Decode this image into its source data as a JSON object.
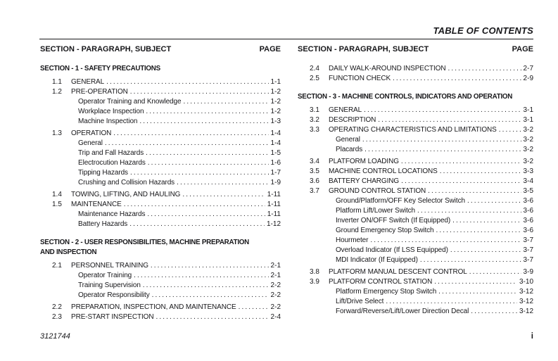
{
  "header": {
    "title": "TABLE OF CONTENTS"
  },
  "column_header": {
    "subject_label": "SECTION - PARAGRAPH, SUBJECT",
    "page_label": "PAGE"
  },
  "footer": {
    "doc_number": "3121744",
    "page_number": "i"
  },
  "colors": {
    "text": "#17171a",
    "background": "#ffffff"
  },
  "columns": [
    {
      "blocks": [
        {
          "heading": "SECTION - 1 - SAFETY PRECAUTIONS",
          "entries": [
            {
              "num": "1.1",
              "title": "GENERAL",
              "page": "1-1"
            },
            {
              "num": "1.2",
              "title": "PRE-OPERATION",
              "page": "1-2"
            },
            {
              "num": "",
              "title": "Operator Training and Knowledge",
              "page": "1-2"
            },
            {
              "num": "",
              "title": "Workplace Inspection",
              "page": "1-2"
            },
            {
              "num": "",
              "title": "Machine Inspection",
              "page": "1-3"
            },
            {
              "num": "1.3",
              "title": "OPERATION",
              "page": "1-4"
            },
            {
              "num": "",
              "title": "General",
              "page": "1-4"
            },
            {
              "num": "",
              "title": "Trip and Fall Hazards",
              "page": "1-5"
            },
            {
              "num": "",
              "title": "Electrocution Hazards",
              "page": "1-6"
            },
            {
              "num": "",
              "title": "Tipping Hazards",
              "page": "1-7"
            },
            {
              "num": "",
              "title": "Crushing and Collision Hazards",
              "page": "1-9"
            },
            {
              "num": "1.4",
              "title": "TOWING, LIFTING, AND HAULING",
              "page": "1-11"
            },
            {
              "num": "1.5",
              "title": "MAINTENANCE",
              "page": "1-11"
            },
            {
              "num": "",
              "title": "Maintenance Hazards",
              "page": "1-11"
            },
            {
              "num": "",
              "title": "Battery Hazards",
              "page": "1-12"
            }
          ]
        },
        {
          "heading": "SECTION - 2 - USER RESPONSIBILITIES, MACHINE PREPARATION\nAND INSPECTION",
          "entries": [
            {
              "num": "2.1",
              "title": "PERSONNEL TRAINING",
              "page": "2-1"
            },
            {
              "num": "",
              "title": "Operator Training",
              "page": "2-1"
            },
            {
              "num": "",
              "title": "Training Supervision",
              "page": "2-2"
            },
            {
              "num": "",
              "title": "Operator Responsibility",
              "page": "2-2"
            },
            {
              "num": "2.2",
              "title": "PREPARATION, INSPECTION, AND MAINTENANCE",
              "page": "2-2"
            },
            {
              "num": "2.3",
              "title": "PRE-START INSPECTION",
              "page": "2-4"
            }
          ]
        }
      ]
    },
    {
      "blocks": [
        {
          "heading": "",
          "entries": [
            {
              "num": "2.4",
              "title": "DAILY WALK-AROUND INSPECTION",
              "page": "2-7"
            },
            {
              "num": "2.5",
              "title": "FUNCTION CHECK",
              "page": "2-9"
            }
          ]
        },
        {
          "heading": "SECTION - 3 - MACHINE CONTROLS, INDICATORS AND OPERATION",
          "entries": [
            {
              "num": "3.1",
              "title": "GENERAL",
              "page": "3-1"
            },
            {
              "num": "3.2",
              "title": "DESCRIPTION",
              "page": "3-1"
            },
            {
              "num": "3.3",
              "title": "OPERATING CHARACTERISTICS AND LIMITATIONS",
              "page": "3-2"
            },
            {
              "num": "",
              "title": "General",
              "page": "3-2"
            },
            {
              "num": "",
              "title": "Placards",
              "page": "3-2"
            },
            {
              "num": "3.4",
              "title": "PLATFORM LOADING",
              "page": "3-2"
            },
            {
              "num": "3.5",
              "title": "MACHINE CONTROL LOCATIONS",
              "page": "3-3"
            },
            {
              "num": "3.6",
              "title": "BATTERY CHARGING",
              "page": "3-4"
            },
            {
              "num": "3.7",
              "title": "GROUND CONTROL STATION",
              "page": "3-5"
            },
            {
              "num": "",
              "title": "Ground/Platform/OFF Key Selector Switch",
              "page": "3-6"
            },
            {
              "num": "",
              "title": "Platform Lift/Lower Switch",
              "page": "3-6"
            },
            {
              "num": "",
              "title": "Inverter ON/OFF Switch (If Equipped)",
              "page": "3-6"
            },
            {
              "num": "",
              "title": "Ground Emergency Stop Switch",
              "page": "3-6"
            },
            {
              "num": "",
              "title": "Hourmeter",
              "page": "3-7"
            },
            {
              "num": "",
              "title": "Overload Indicator (If LSS Equipped)",
              "page": "3-7"
            },
            {
              "num": "",
              "title": "MDI Indicator (If Equipped)",
              "page": "3-7"
            },
            {
              "num": "3.8",
              "title": "PLATFORM MANUAL DESCENT CONTROL",
              "page": "3-9"
            },
            {
              "num": "3.9",
              "title": "PLATFORM CONTROL STATION",
              "page": "3-10"
            },
            {
              "num": "",
              "title": "Platform Emergency Stop Switch",
              "page": "3-12"
            },
            {
              "num": "",
              "title": "Lift/Drive Select",
              "page": "3-12"
            },
            {
              "num": "",
              "title": "Forward/Reverse/Lift/Lower Direction Decal",
              "page": "3-12"
            }
          ]
        }
      ]
    }
  ]
}
